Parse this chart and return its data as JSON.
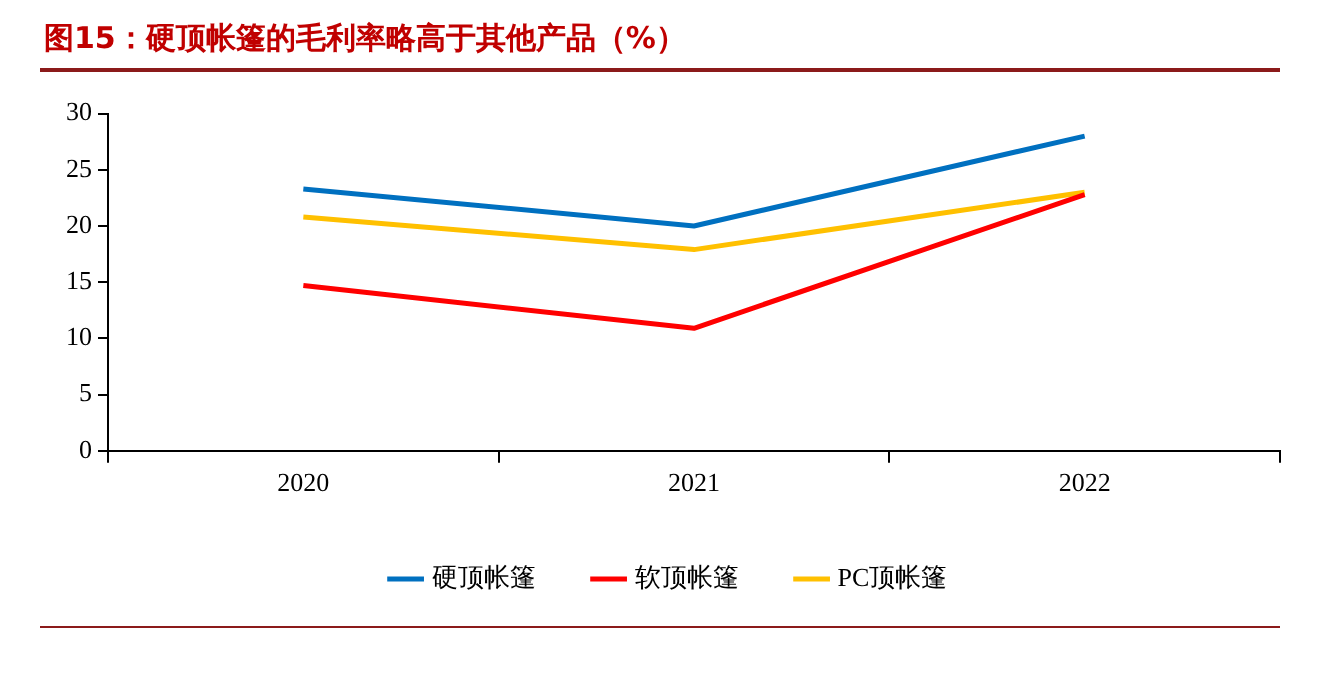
{
  "chart_data": {
    "type": "line",
    "title": "图15：硬顶帐篷的毛利率略高于其他产品（%）",
    "categories": [
      "2020",
      "2021",
      "2022"
    ],
    "series": [
      {
        "name": "硬顶帐篷",
        "color": "#0070c0",
        "values": [
          23.3,
          20,
          28
        ]
      },
      {
        "name": "软顶帐篷",
        "color": "#ff0000",
        "values": [
          14.7,
          10.9,
          22.8
        ]
      },
      {
        "name": "PC顶帐篷",
        "color": "#ffc000",
        "values": [
          20.8,
          17.9,
          23
        ]
      }
    ],
    "ylim": [
      0,
      30
    ],
    "yticks": [
      0,
      5,
      10,
      15,
      20,
      25,
      30
    ],
    "grid": false,
    "legend": "bottom",
    "marker": "none",
    "line_style": "solid"
  }
}
